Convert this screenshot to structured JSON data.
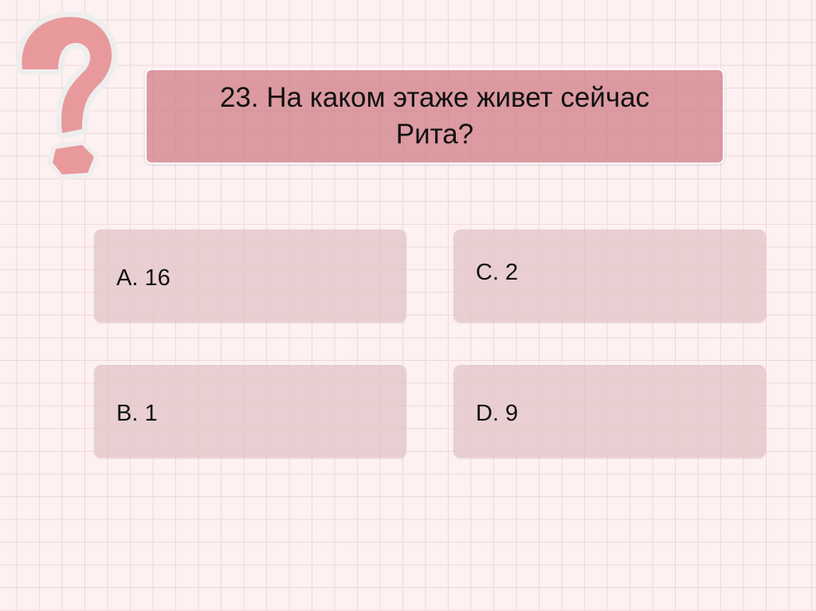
{
  "question": {
    "text": "23. На каком этаже живет сейчас Рита?"
  },
  "answers": [
    {
      "label": "A.  16"
    },
    {
      "label": "C. 2"
    },
    {
      "label": "B.  1"
    },
    {
      "label": "D.  9"
    }
  ],
  "decoration": {
    "icon": "question-mark-icon",
    "color": "#e89a9c"
  }
}
